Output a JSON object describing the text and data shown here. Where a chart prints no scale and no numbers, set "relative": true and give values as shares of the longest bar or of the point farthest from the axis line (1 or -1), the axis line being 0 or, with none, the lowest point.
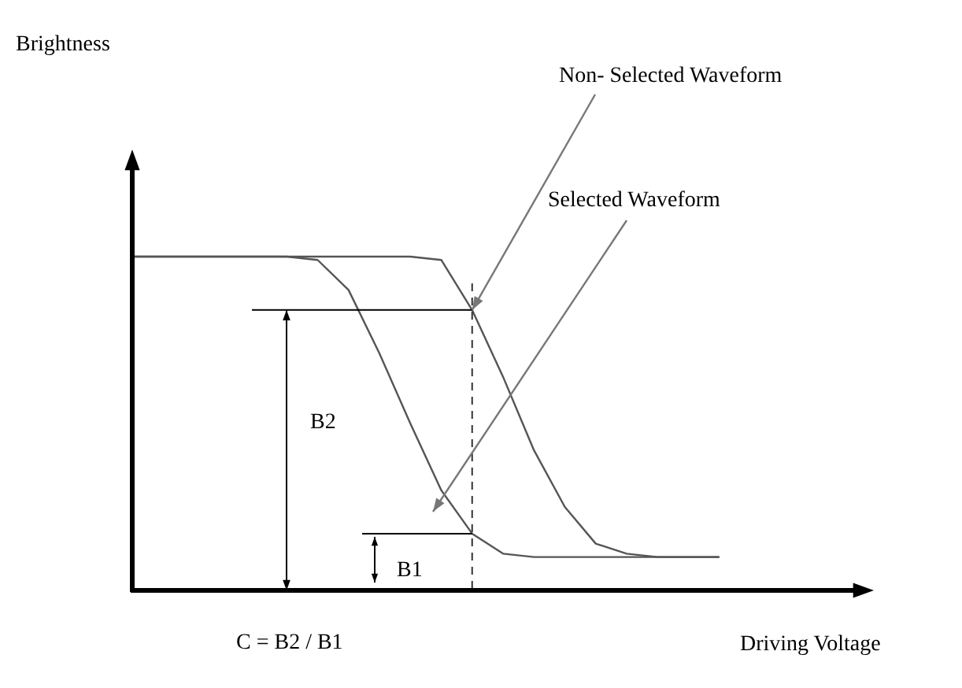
{
  "chart_data": {
    "type": "line",
    "relative": true,
    "xlabel": "Driving Voltage",
    "categories": [
      null,
      null,
      null,
      null,
      null,
      null,
      null,
      null,
      null,
      null,
      null,
      null,
      null,
      null,
      null,
      null,
      null,
      null,
      null,
      null,
      null,
      null,
      null,
      null,
      null
    ],
    "series": [
      {
        "color": "#555555",
        "values": [
          1,
          1,
          1,
          1,
          1,
          1,
          1,
          1,
          1,
          1,
          0.99,
          0.84,
          0.64,
          0.42,
          0.25,
          0.14,
          0.11,
          0.1,
          0.1,
          0.1,
          null,
          null,
          null,
          null,
          null
        ]
      },
      {
        "color": "#555555",
        "values": [
          1,
          1,
          1,
          1,
          1,
          1,
          0.99,
          0.9,
          0.71,
          0.5,
          0.3,
          0.17,
          0.11,
          0.1,
          0.1,
          0.1,
          0.1,
          0.1,
          0.1,
          0.1,
          null,
          null,
          null,
          null,
          null
        ]
      }
    ],
    "annotations": [
      "Non- Selected Waveform",
      "Selected Waveform",
      "B2",
      "B1",
      "C  = B2 / B1",
      "Brightness"
    ],
    "marker": "none",
    "line_style": "solid"
  }
}
